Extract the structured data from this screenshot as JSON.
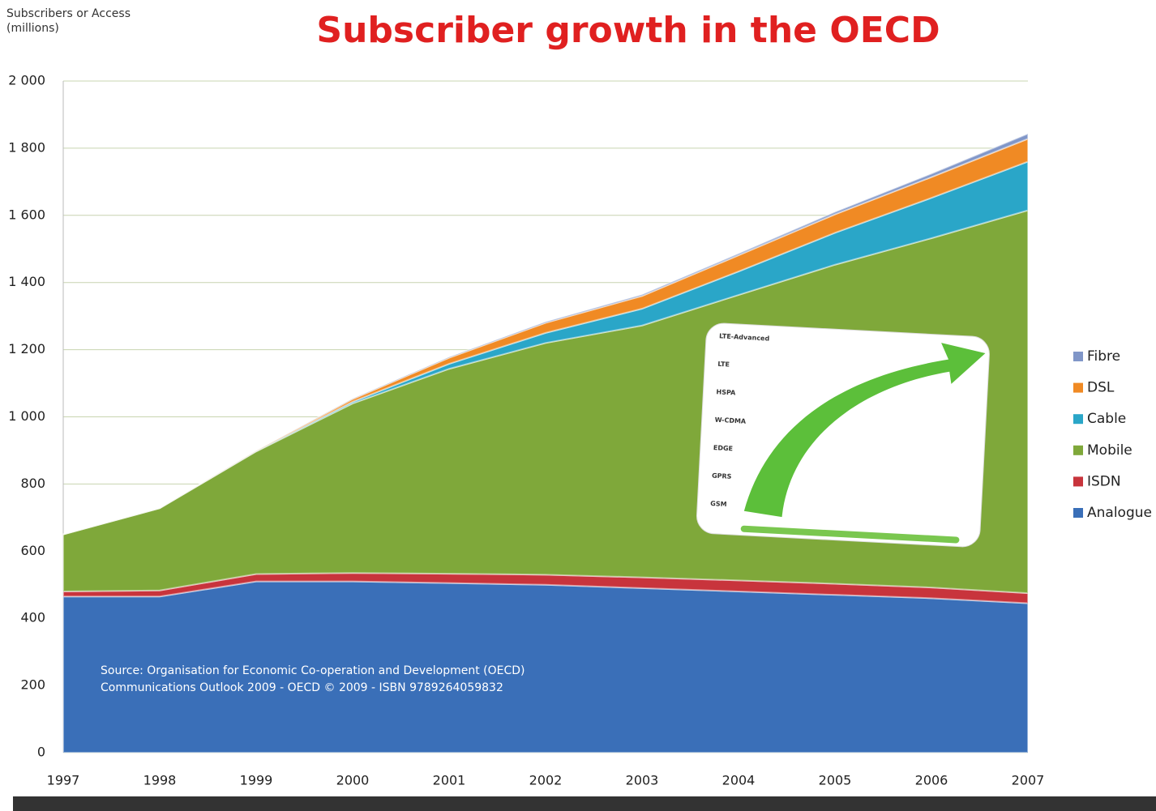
{
  "chart_data": {
    "type": "stacked-area",
    "title": "Subscriber growth in the OECD",
    "y_label": "Subscribers or Access (millions)",
    "x": [
      1997,
      1998,
      1999,
      2000,
      2001,
      2002,
      2003,
      2004,
      2005,
      2006,
      2007
    ],
    "xlim": [
      1997,
      2007
    ],
    "ylim": [
      0,
      2000
    ],
    "yticks": [
      0,
      200,
      400,
      600,
      800,
      {
        "value": 1000,
        "label": "1 000"
      },
      {
        "value": 1200,
        "label": "1 200"
      },
      {
        "value": 1400,
        "label": "1 400"
      },
      {
        "value": 1600,
        "label": "1 600"
      },
      {
        "value": 1800,
        "label": "1 800"
      },
      {
        "value": 2000,
        "label": "2 000"
      }
    ],
    "grid": true,
    "legend": "right",
    "series": [
      {
        "name": "Analogue",
        "color": "#3a6fb8",
        "values": [
          465,
          465,
          510,
          510,
          505,
          500,
          490,
          480,
          470,
          460,
          445
        ]
      },
      {
        "name": "ISDN",
        "color": "#c8343c",
        "values": [
          15,
          18,
          22,
          25,
          28,
          30,
          32,
          33,
          33,
          32,
          30
        ]
      },
      {
        "name": "Mobile",
        "color": "#7fa83a",
        "values": [
          170,
          245,
          365,
          505,
          610,
          690,
          750,
          850,
          950,
          1040,
          1140
        ]
      },
      {
        "name": "Cable",
        "color": "#2aa6c8",
        "values": [
          0,
          0,
          1,
          5,
          15,
          30,
          50,
          70,
          95,
          120,
          145
        ]
      },
      {
        "name": "DSL",
        "color": "#f08a24",
        "values": [
          0,
          0,
          1,
          8,
          18,
          30,
          38,
          48,
          55,
          62,
          68
        ]
      },
      {
        "name": "Fibre",
        "color": "#8096c8",
        "values": [
          0,
          0,
          0,
          1,
          2,
          3,
          4,
          5,
          7,
          10,
          15
        ]
      }
    ],
    "source": [
      "Source: Organisation for Economic Co-operation and Development (OECD)",
      "Communications Outlook 2009 - OECD © 2009 - ISBN 9789264059832"
    ],
    "inset_labels": [
      "LTE-Advanced",
      "LTE",
      "HSPA",
      "W-CDMA",
      "EDGE",
      "GPRS",
      "GSM"
    ]
  }
}
